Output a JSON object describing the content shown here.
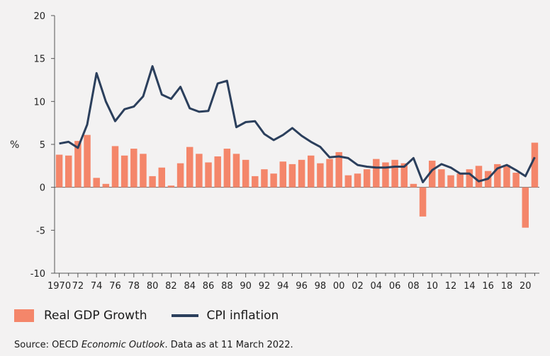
{
  "chart_data": {
    "type": "bar+line",
    "title": "",
    "ylabel": "%",
    "xlabel": "",
    "ylim": [
      -10,
      20
    ],
    "yticks": [
      20,
      15,
      10,
      5,
      0,
      -5,
      -10
    ],
    "x": [
      1970,
      1971,
      1972,
      1973,
      1974,
      1975,
      1976,
      1977,
      1978,
      1979,
      1980,
      1981,
      1982,
      1983,
      1984,
      1985,
      1986,
      1987,
      1988,
      1989,
      1990,
      1991,
      1992,
      1993,
      1994,
      1995,
      1996,
      1997,
      1998,
      1999,
      2000,
      2001,
      2002,
      2003,
      2004,
      2005,
      2006,
      2007,
      2008,
      2009,
      2010,
      2011,
      2012,
      2013,
      2014,
      2015,
      2016,
      2017,
      2018,
      2019,
      2020,
      2021
    ],
    "xtick_labels": [
      "1970",
      "72",
      "74",
      "76",
      "78",
      "80",
      "82",
      "84",
      "86",
      "88",
      "90",
      "92",
      "94",
      "96",
      "98",
      "00",
      "02",
      "04",
      "06",
      "08",
      "10",
      "12",
      "14",
      "16",
      "18",
      "20"
    ],
    "xtick_labels_odd": [
      "",
      "",
      "",
      "",
      "",
      "",
      "",
      "",
      "",
      "",
      "",
      "",
      "",
      "",
      "",
      "",
      "",
      "",
      "",
      "",
      "",
      "",
      "",
      "",
      "",
      ""
    ],
    "series": [
      {
        "name": "Real GDP Growth",
        "type": "bar",
        "color": "#f4866a",
        "values": [
          3.8,
          3.7,
          5.4,
          6.1,
          1.1,
          0.4,
          4.8,
          3.7,
          4.5,
          3.9,
          1.3,
          2.3,
          0.2,
          2.8,
          4.7,
          3.9,
          2.9,
          3.6,
          4.5,
          3.9,
          3.2,
          1.3,
          2.1,
          1.6,
          3.0,
          2.7,
          3.2,
          3.7,
          2.8,
          3.3,
          4.1,
          1.4,
          1.6,
          2.1,
          3.3,
          2.9,
          3.2,
          2.8,
          0.4,
          -3.4,
          3.1,
          2.1,
          1.4,
          1.6,
          2.1,
          2.5,
          1.9,
          2.7,
          2.6,
          1.7,
          -4.7,
          5.2
        ]
      },
      {
        "name": "CPI inflation",
        "type": "line",
        "color": "#2b3f5c",
        "values": [
          5.1,
          5.3,
          4.6,
          7.3,
          13.3,
          10.0,
          7.7,
          9.1,
          9.4,
          10.6,
          14.1,
          10.8,
          10.3,
          11.7,
          9.2,
          8.8,
          8.9,
          12.1,
          12.4,
          7.0,
          7.6,
          7.7,
          6.2,
          5.5,
          6.1,
          6.9,
          6.0,
          5.3,
          4.7,
          3.5,
          3.6,
          3.4,
          2.6,
          2.4,
          2.3,
          2.3,
          2.4,
          2.4,
          3.4,
          0.6,
          2.0,
          2.7,
          2.3,
          1.6,
          1.6,
          0.7,
          1.0,
          2.2,
          2.6,
          2.0,
          1.3,
          3.5
        ]
      }
    ],
    "legend": [
      {
        "label": "Real GDP Growth",
        "kind": "bar",
        "color": "#f4866a"
      },
      {
        "label": "CPI inflation",
        "kind": "line",
        "color": "#2b3f5c"
      }
    ],
    "legend_position": "bottom-left",
    "source_prefix": "Source: OECD ",
    "source_em": "Economic Outlook",
    "source_suffix": ". Data as at 11 March 2022."
  }
}
